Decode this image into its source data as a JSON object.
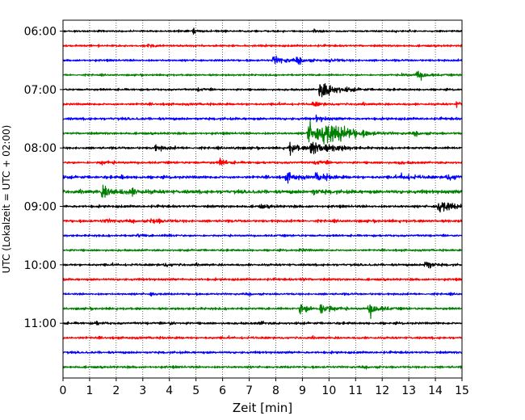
{
  "chart_data": {
    "type": "line",
    "chart_kind": "helicorder (seismogram trace plot)",
    "xlabel": "Zeit  [min]",
    "ylabel": "UTC (Lokalzeit = UTC + 02:00)",
    "xlim": [
      0,
      15
    ],
    "x_ticks": [
      0,
      1,
      2,
      3,
      4,
      5,
      6,
      7,
      8,
      9,
      10,
      11,
      12,
      13,
      14,
      15
    ],
    "x_tick_labels": [
      "0",
      "1",
      "2",
      "3",
      "4",
      "5",
      "6",
      "7",
      "8",
      "9",
      "10",
      "11",
      "12",
      "13",
      "14",
      "15"
    ],
    "y_tick_labels": [
      "06:00",
      "07:00",
      "08:00",
      "09:00",
      "10:00",
      "11:00"
    ],
    "trace_interval_minutes": 15,
    "grid": "vertical dotted at each minute",
    "trace_colors": [
      "#000000",
      "#ff0000",
      "#0000ff",
      "#008000"
    ],
    "series": [
      {
        "start": "06:00",
        "color": "#000000",
        "noise": 0.35,
        "events": [
          {
            "t": 4.9,
            "amp": 0.9,
            "dur": 0.15
          },
          {
            "t": 9.4,
            "amp": 0.8,
            "dur": 0.2
          }
        ]
      },
      {
        "start": "06:15",
        "color": "#ff0000",
        "noise": 0.4,
        "events": [
          {
            "t": 3.2,
            "amp": 0.8,
            "dur": 0.2
          }
        ]
      },
      {
        "start": "06:30",
        "color": "#0000ff",
        "noise": 0.4,
        "events": [
          {
            "t": 7.9,
            "amp": 1.6,
            "dur": 0.5
          },
          {
            "t": 8.8,
            "amp": 0.9,
            "dur": 0.3
          },
          {
            "t": 10.0,
            "amp": 0.8,
            "dur": 0.3
          }
        ]
      },
      {
        "start": "06:45",
        "color": "#008000",
        "noise": 0.35,
        "events": [
          {
            "t": 12.7,
            "amp": 0.6,
            "dur": 0.3
          },
          {
            "t": 13.3,
            "amp": 2.0,
            "dur": 0.3
          }
        ]
      },
      {
        "start": "07:00",
        "color": "#000000",
        "noise": 0.4,
        "events": [
          {
            "t": 9.65,
            "amp": 4.0,
            "dur": 0.5
          },
          {
            "t": 5.1,
            "amp": 0.6,
            "dur": 0.2
          }
        ]
      },
      {
        "start": "07:15",
        "color": "#ff0000",
        "noise": 0.45,
        "events": [
          {
            "t": 9.4,
            "amp": 0.9,
            "dur": 0.3
          },
          {
            "t": 14.8,
            "amp": 0.9,
            "dur": 0.2
          }
        ]
      },
      {
        "start": "07:30",
        "color": "#0000ff",
        "noise": 0.5,
        "events": [
          {
            "t": 9.5,
            "amp": 1.0,
            "dur": 0.3
          }
        ]
      },
      {
        "start": "07:45",
        "color": "#008000",
        "noise": 0.45,
        "events": [
          {
            "t": 9.2,
            "amp": 4.5,
            "dur": 0.6
          },
          {
            "t": 9.75,
            "amp": 4.0,
            "dur": 0.7
          },
          {
            "t": 10.4,
            "amp": 1.2,
            "dur": 0.6
          },
          {
            "t": 13.2,
            "amp": 0.5,
            "dur": 0.3
          }
        ]
      },
      {
        "start": "08:00",
        "color": "#000000",
        "noise": 0.45,
        "events": [
          {
            "t": 3.4,
            "amp": 1.1,
            "dur": 0.4
          },
          {
            "t": 6.5,
            "amp": 0.8,
            "dur": 0.1
          },
          {
            "t": 8.5,
            "amp": 2.3,
            "dur": 0.3
          },
          {
            "t": 9.3,
            "amp": 3.5,
            "dur": 0.5
          },
          {
            "t": 10.2,
            "amp": 0.8,
            "dur": 0.3
          }
        ]
      },
      {
        "start": "08:15",
        "color": "#ff0000",
        "noise": 0.45,
        "events": [
          {
            "t": 1.4,
            "amp": 0.8,
            "dur": 0.3
          },
          {
            "t": 5.9,
            "amp": 1.5,
            "dur": 0.2
          },
          {
            "t": 9.5,
            "amp": 0.9,
            "dur": 0.3
          },
          {
            "t": 12.6,
            "amp": 0.6,
            "dur": 0.2
          }
        ]
      },
      {
        "start": "08:30",
        "color": "#0000ff",
        "noise": 0.55,
        "events": [
          {
            "t": 2.2,
            "amp": 0.8,
            "dur": 0.1
          },
          {
            "t": 8.4,
            "amp": 2.0,
            "dur": 0.3
          },
          {
            "t": 9.5,
            "amp": 1.5,
            "dur": 0.4
          },
          {
            "t": 12.7,
            "amp": 1.2,
            "dur": 0.4
          },
          {
            "t": 14.4,
            "amp": 1.0,
            "dur": 0.6
          }
        ]
      },
      {
        "start": "08:45",
        "color": "#008000",
        "noise": 0.7,
        "events": [
          {
            "t": 1.45,
            "amp": 2.2,
            "dur": 0.5
          },
          {
            "t": 2.5,
            "amp": 0.9,
            "dur": 0.4
          },
          {
            "t": 9.4,
            "amp": 0.9,
            "dur": 0.3
          }
        ]
      },
      {
        "start": "09:00",
        "color": "#000000",
        "noise": 0.5,
        "events": [
          {
            "t": 14.1,
            "amp": 3.2,
            "dur": 0.4
          },
          {
            "t": 7.4,
            "amp": 0.6,
            "dur": 0.3
          }
        ]
      },
      {
        "start": "09:15",
        "color": "#ff0000",
        "noise": 0.5,
        "events": [
          {
            "t": 3.3,
            "amp": 1.0,
            "dur": 0.4
          },
          {
            "t": 1.5,
            "amp": 0.6,
            "dur": 0.4
          }
        ]
      },
      {
        "start": "09:30",
        "color": "#0000ff",
        "noise": 0.4,
        "events": [
          {
            "t": 2.8,
            "amp": 0.6,
            "dur": 0.2
          },
          {
            "t": 3.9,
            "amp": 0.5,
            "dur": 0.2
          }
        ]
      },
      {
        "start": "09:45",
        "color": "#008000",
        "noise": 0.4,
        "events": [
          {
            "t": 8.9,
            "amp": 0.6,
            "dur": 0.2
          }
        ]
      },
      {
        "start": "10:00",
        "color": "#000000",
        "noise": 0.45,
        "events": [
          {
            "t": 13.6,
            "amp": 2.8,
            "dur": 0.2
          },
          {
            "t": 3.8,
            "amp": 0.6,
            "dur": 0.3
          }
        ]
      },
      {
        "start": "10:15",
        "color": "#ff0000",
        "noise": 0.45,
        "events": [
          {
            "t": 8.95,
            "amp": 1.0,
            "dur": 0.1
          }
        ]
      },
      {
        "start": "10:30",
        "color": "#0000ff",
        "noise": 0.4,
        "events": [
          {
            "t": 3.3,
            "amp": 0.6,
            "dur": 0.2
          }
        ]
      },
      {
        "start": "10:45",
        "color": "#008000",
        "noise": 0.45,
        "events": [
          {
            "t": 8.9,
            "amp": 2.4,
            "dur": 0.3
          },
          {
            "t": 9.7,
            "amp": 3.0,
            "dur": 0.3
          },
          {
            "t": 11.5,
            "amp": 3.0,
            "dur": 0.3
          }
        ]
      },
      {
        "start": "11:00",
        "color": "#000000",
        "noise": 0.45,
        "events": [
          {
            "t": 1.2,
            "amp": 0.6,
            "dur": 0.2
          },
          {
            "t": 4.0,
            "amp": 0.6,
            "dur": 0.2
          },
          {
            "t": 7.4,
            "amp": 0.7,
            "dur": 0.2
          }
        ]
      },
      {
        "start": "11:15",
        "color": "#ff0000",
        "noise": 0.45,
        "events": []
      },
      {
        "start": "11:30",
        "color": "#0000ff",
        "noise": 0.45,
        "events": []
      },
      {
        "start": "11:45",
        "color": "#008000",
        "noise": 0.45,
        "events": []
      }
    ]
  }
}
